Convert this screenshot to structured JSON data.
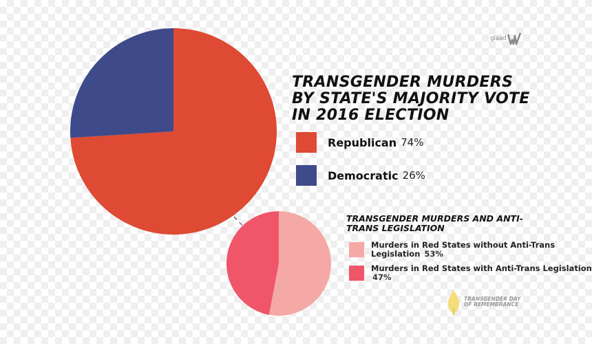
{
  "logo": {
    "text": "glaad"
  },
  "title": "TRANSGENDER MURDERS BY STATE'S MAJORITY VOTE IN 2016 ELECTION",
  "subtitle": "TRANSGENDER MURDERS AND ANTI-TRANS LEGISLATION",
  "legend_main": [
    {
      "label": "Republican",
      "pct": "74%",
      "color": "#de4a33"
    },
    {
      "label": "Democratic",
      "pct": "26%",
      "color": "#3e4a8a"
    }
  ],
  "legend_sub": [
    {
      "label": "Murders in Red States without Anti-Trans Legislation",
      "pct": "53%",
      "color": "#f5a9a6"
    },
    {
      "label": "Murders in Red States with Anti-Trans Legislation",
      "pct": "47%",
      "color": "#ef5669"
    }
  ],
  "tdor": {
    "text": "TRANSGENDER DAY OF REMEMBRANCE",
    "icon": "candle-flame-icon"
  },
  "chart_data": [
    {
      "type": "pie",
      "title": "TRANSGENDER MURDERS BY STATE'S MAJORITY VOTE IN 2016 ELECTION",
      "categories": [
        "Republican",
        "Democratic"
      ],
      "values": [
        74,
        26
      ],
      "unit": "%",
      "colors": [
        "#de4a33",
        "#3e4a8a"
      ]
    },
    {
      "type": "pie",
      "title": "TRANSGENDER MURDERS AND ANTI-TRANS LEGISLATION",
      "categories": [
        "Murders in Red States without Anti-Trans Legislation",
        "Murders in Red States with Anti-Trans Legislation"
      ],
      "values": [
        53,
        47
      ],
      "unit": "%",
      "colors": [
        "#f5a9a6",
        "#ef5669"
      ]
    }
  ]
}
